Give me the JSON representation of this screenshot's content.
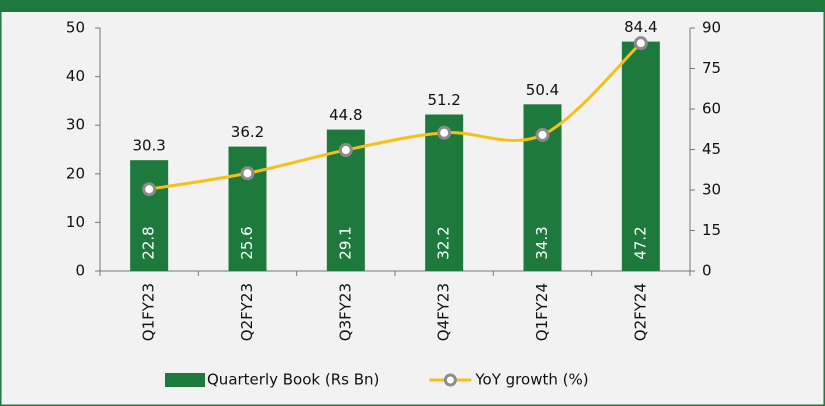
{
  "chart_data": {
    "type": "bar",
    "categories": [
      "Q1FY23",
      "Q2FY23",
      "Q3FY23",
      "Q4FY23",
      "Q1FY24",
      "Q2FY24"
    ],
    "series": [
      {
        "name": "Quarterly Book (Rs Bn)",
        "type": "bar",
        "color": "#1e7a3c",
        "axis": "y",
        "values": [
          22.8,
          25.6,
          29.1,
          32.2,
          34.3,
          47.2
        ]
      },
      {
        "name": "YoY growth (%)",
        "type": "line",
        "color": "#f5c018",
        "axis": "y2",
        "values": [
          30.3,
          36.2,
          44.8,
          51.2,
          50.4,
          84.4
        ]
      }
    ],
    "ylim": [
      0,
      50
    ],
    "yticks": [
      0,
      10,
      20,
      30,
      40,
      50
    ],
    "y2lim": [
      0,
      90
    ],
    "y2ticks": [
      0,
      15,
      30,
      45,
      60,
      75,
      90
    ],
    "legend": "bottom"
  }
}
